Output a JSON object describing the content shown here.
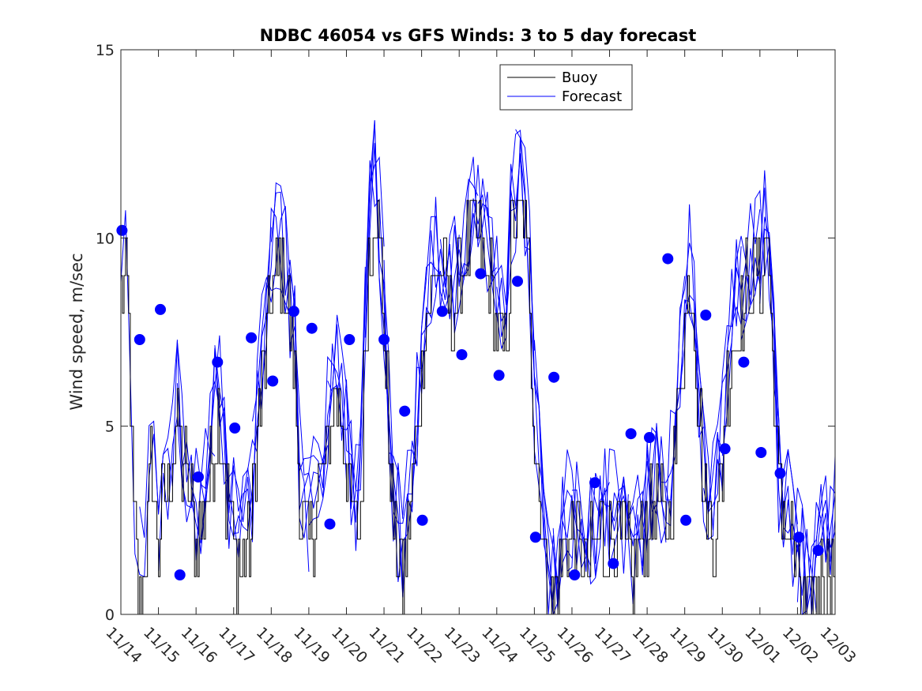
{
  "chart_data": {
    "type": "line",
    "title": "NDBC 46054 vs GFS Winds: 3 to 5 day forecast",
    "xlabel": "",
    "ylabel": "Wind speed, m/sec",
    "xlim": [
      0,
      19
    ],
    "ylim": [
      0,
      15
    ],
    "x_tick_labels": [
      "11/14",
      "11/15",
      "11/16",
      "11/17",
      "11/18",
      "11/19",
      "11/20",
      "11/21",
      "11/22",
      "11/23",
      "11/24",
      "11/25",
      "11/26",
      "11/27",
      "11/28",
      "11/29",
      "11/30",
      "12/01",
      "12/02",
      "12/03"
    ],
    "y_ticks": [
      0,
      5,
      10,
      15
    ],
    "legend": {
      "position": "top-center",
      "entries": [
        "Buoy",
        "Forecast"
      ]
    },
    "colors": {
      "buoy": "#000000",
      "forecast": "#0000ff",
      "axes": "#262626"
    },
    "buoy_anchors": {
      "x": [
        0.0,
        0.2,
        0.35,
        0.55,
        0.8,
        1.0,
        1.2,
        1.5,
        1.8,
        2.0,
        2.3,
        2.6,
        2.8,
        3.0,
        3.2,
        3.45,
        3.65,
        3.85,
        4.05,
        4.3,
        4.6,
        4.8,
        5.0,
        5.2,
        5.45,
        5.7,
        5.9,
        6.1,
        6.35,
        6.55,
        6.75,
        6.95,
        7.1,
        7.3,
        7.5,
        7.7,
        7.9,
        8.1,
        8.35,
        8.6,
        8.8,
        9.0,
        9.2,
        9.45,
        9.7,
        9.95,
        10.2,
        10.4,
        10.65,
        10.85,
        11.0,
        11.15,
        11.3,
        11.5,
        11.8,
        12.1,
        12.4,
        12.7,
        13.0,
        13.3,
        13.6,
        13.9,
        14.2,
        14.5,
        14.8,
        15.0,
        15.2,
        15.5,
        15.8,
        16.0,
        16.2,
        16.5,
        16.8,
        17.0,
        17.2,
        17.5,
        17.8,
        18.0,
        18.3,
        18.6,
        19.0
      ],
      "y": [
        9,
        8,
        2,
        0,
        4,
        2,
        3,
        5,
        3,
        2,
        3,
        6,
        3,
        2,
        1,
        2,
        5,
        7,
        9,
        9,
        7,
        2,
        2,
        3,
        4,
        6,
        5,
        3,
        2,
        9,
        11,
        9,
        5,
        2,
        1,
        3,
        5,
        8,
        9,
        9,
        8,
        9,
        10,
        10,
        9,
        8,
        7,
        10,
        11,
        9,
        5,
        3,
        1,
        0,
        2,
        2,
        1,
        2,
        2,
        2,
        1,
        2,
        3,
        2,
        5,
        8,
        9,
        3,
        2,
        4,
        7,
        8,
        9,
        9,
        10,
        3,
        2,
        1,
        0,
        1,
        2
      ]
    },
    "forecast_points": {
      "x": [
        0.03,
        0.5,
        1.05,
        1.57,
        2.06,
        2.57,
        3.03,
        3.47,
        4.04,
        4.6,
        5.08,
        5.56,
        6.08,
        7.0,
        7.55,
        8.02,
        8.55,
        9.07,
        9.57,
        10.06,
        10.55,
        11.03,
        11.52,
        12.07,
        12.61,
        13.1,
        13.57,
        14.06,
        14.55,
        15.03,
        15.56,
        16.07,
        16.57,
        17.03,
        17.54,
        18.04,
        18.55
      ],
      "y": [
        10.2,
        7.3,
        8.1,
        1.05,
        3.65,
        6.7,
        4.95,
        7.35,
        6.2,
        8.05,
        7.6,
        2.4,
        7.3,
        7.3,
        5.4,
        2.5,
        8.05,
        6.9,
        9.05,
        6.35,
        8.85,
        2.05,
        6.3,
        1.05,
        3.5,
        1.35,
        4.8,
        4.7,
        9.45,
        2.5,
        7.95,
        4.4,
        6.7,
        4.3,
        3.75,
        2.05,
        1.7
      ]
    }
  }
}
